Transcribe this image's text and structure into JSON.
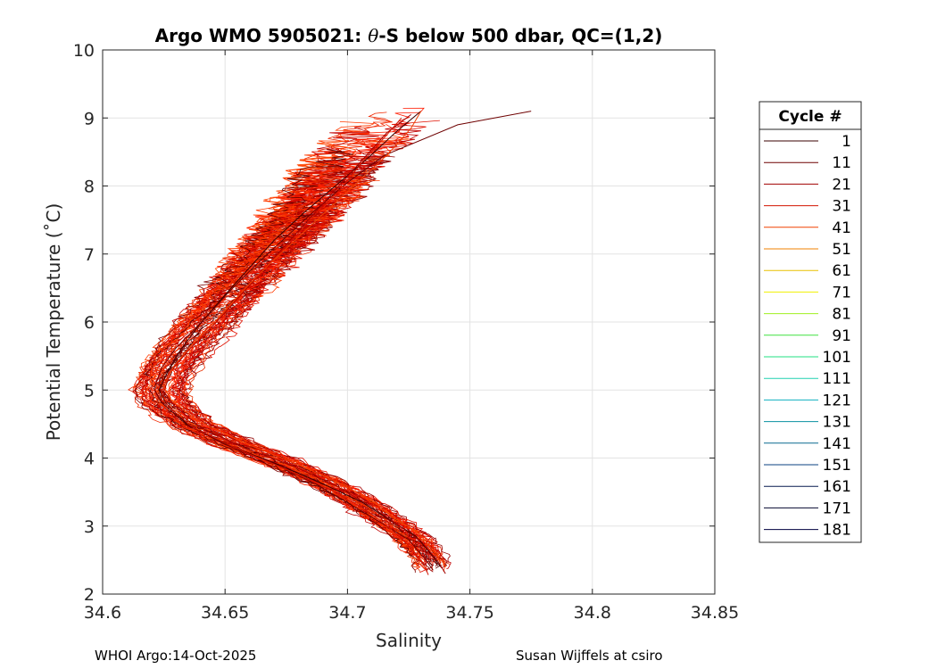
{
  "chart_data": {
    "type": "line",
    "title_prefix": "Argo WMO 5905021: ",
    "title_theta": "θ",
    "title_suffix": "-S below 500 dbar,  QC=(1,2)",
    "xlabel": "Salinity",
    "ylabel": "Potential Temperature (˚C)",
    "xlim": [
      34.6,
      34.85
    ],
    "ylim": [
      2,
      10
    ],
    "xticks": [
      34.6,
      34.65,
      34.7,
      34.75,
      34.8,
      34.85
    ],
    "xtick_labels": [
      "34.6",
      "34.65",
      "34.7",
      "34.75",
      "34.8",
      "34.85"
    ],
    "yticks": [
      2,
      3,
      4,
      5,
      6,
      7,
      8,
      9,
      10
    ],
    "ytick_labels": [
      "2",
      "3",
      "4",
      "5",
      "6",
      "7",
      "8",
      "9",
      "10"
    ],
    "grid": true,
    "legend_title": "Cycle #",
    "legend_placement": "outside-right",
    "legend": [
      {
        "label": "1",
        "color": "#3a0000"
      },
      {
        "label": "11",
        "color": "#6e0000"
      },
      {
        "label": "21",
        "color": "#a00000"
      },
      {
        "label": "31",
        "color": "#d21400"
      },
      {
        "label": "41",
        "color": "#f04000"
      },
      {
        "label": "51",
        "color": "#f08000"
      },
      {
        "label": "61",
        "color": "#e8c000"
      },
      {
        "label": "71",
        "color": "#f0f000"
      },
      {
        "label": "81",
        "color": "#a0f020"
      },
      {
        "label": "91",
        "color": "#40e040"
      },
      {
        "label": "101",
        "color": "#20e080"
      },
      {
        "label": "111",
        "color": "#20d0b0"
      },
      {
        "label": "121",
        "color": "#10b0c0"
      },
      {
        "label": "131",
        "color": "#0890a0"
      },
      {
        "label": "141",
        "color": "#0a6a90"
      },
      {
        "label": "151",
        "color": "#0a4080"
      },
      {
        "label": "161",
        "color": "#081c50"
      },
      {
        "label": "171",
        "color": "#060830"
      },
      {
        "label": "181",
        "color": "#000040"
      }
    ],
    "mean_profile": {
      "theta": [
        2.3,
        2.5,
        2.8,
        3.0,
        3.3,
        3.6,
        3.9,
        4.2,
        4.5,
        4.8,
        5.0,
        5.3,
        5.6,
        6.0,
        6.4,
        6.8,
        7.2,
        7.6,
        8.0,
        8.4,
        8.8,
        9.1
      ],
      "salinity": [
        34.736,
        34.734,
        34.727,
        34.72,
        34.708,
        34.694,
        34.676,
        34.655,
        34.637,
        34.627,
        34.624,
        34.627,
        34.633,
        34.643,
        34.653,
        34.663,
        34.673,
        34.683,
        34.693,
        34.703,
        34.715,
        34.725
      ]
    },
    "series": [
      {
        "name": "1",
        "color": "#3a0000",
        "salinity": [
          34.738,
          34.735,
          34.728,
          34.719,
          34.706,
          34.69,
          34.672,
          34.652,
          34.635,
          34.626,
          34.623,
          34.627,
          34.632,
          34.64,
          34.65,
          34.66,
          34.67,
          34.682,
          34.695,
          34.708,
          34.72,
          34.73
        ],
        "theta": [
          2.4,
          2.55,
          2.85,
          3.05,
          3.35,
          3.62,
          3.9,
          4.18,
          4.48,
          4.8,
          5.0,
          5.3,
          5.6,
          5.98,
          6.4,
          6.8,
          7.2,
          7.6,
          8.0,
          8.4,
          8.8,
          9.1
        ]
      },
      {
        "name": "11",
        "color": "#6e0000",
        "salinity": [
          34.735,
          34.732,
          34.725,
          34.716,
          34.702,
          34.688,
          34.67,
          34.65,
          34.634,
          34.624,
          34.621,
          34.624,
          34.63,
          34.641,
          34.651,
          34.662,
          34.674,
          34.686,
          34.7,
          34.715,
          34.745,
          34.775
        ],
        "theta": [
          2.35,
          2.5,
          2.8,
          3.0,
          3.3,
          3.6,
          3.92,
          4.2,
          4.5,
          4.82,
          5.02,
          5.32,
          5.62,
          6.02,
          6.42,
          6.82,
          7.22,
          7.62,
          8.05,
          8.45,
          8.9,
          9.1
        ]
      },
      {
        "name": "21",
        "color": "#a00000",
        "salinity": [
          34.74,
          34.737,
          34.73,
          34.722,
          34.71,
          34.696,
          34.678,
          34.658,
          34.64,
          34.629,
          34.625,
          34.628,
          34.635,
          34.646,
          34.656,
          34.666,
          34.676,
          34.686,
          34.696,
          34.706,
          34.716,
          34.726
        ],
        "theta": [
          2.3,
          2.48,
          2.78,
          2.98,
          3.28,
          3.58,
          3.88,
          4.15,
          4.45,
          4.78,
          4.98,
          5.28,
          5.58,
          5.98,
          6.38,
          6.78,
          7.18,
          7.58,
          7.98,
          8.38,
          8.78,
          9.05
        ]
      },
      {
        "name": "31",
        "color": "#d21400",
        "salinity": [
          34.733,
          34.731,
          34.724,
          34.718,
          34.707,
          34.692,
          34.674,
          34.654,
          34.637,
          34.627,
          34.624,
          34.627,
          34.634,
          34.645,
          34.655,
          34.665,
          34.676,
          34.686,
          34.697,
          34.706,
          34.716,
          34.722
        ],
        "theta": [
          2.28,
          2.45,
          2.75,
          2.95,
          3.25,
          3.55,
          3.85,
          4.15,
          4.45,
          4.75,
          4.95,
          5.25,
          5.55,
          5.95,
          6.35,
          6.75,
          7.15,
          7.55,
          7.95,
          8.35,
          8.75,
          9.0
        ]
      },
      {
        "name": "41",
        "color": "#f04000",
        "salinity": [
          34.738,
          34.736,
          34.729,
          34.72,
          34.709,
          34.694,
          34.676,
          34.656,
          34.639,
          34.628,
          34.625,
          34.629,
          34.636,
          34.647,
          34.657,
          34.668,
          34.68,
          34.692,
          34.704,
          34.716,
          34.726,
          34.73
        ],
        "theta": [
          2.45,
          2.6,
          2.9,
          3.1,
          3.4,
          3.68,
          3.96,
          4.25,
          4.55,
          4.85,
          5.05,
          5.35,
          5.65,
          6.05,
          6.45,
          6.85,
          7.25,
          7.65,
          8.05,
          8.45,
          8.85,
          9.1
        ]
      }
    ]
  },
  "footer": {
    "left": "WHOI Argo:14-Oct-2025",
    "right": "Susan Wijffels at csiro"
  }
}
